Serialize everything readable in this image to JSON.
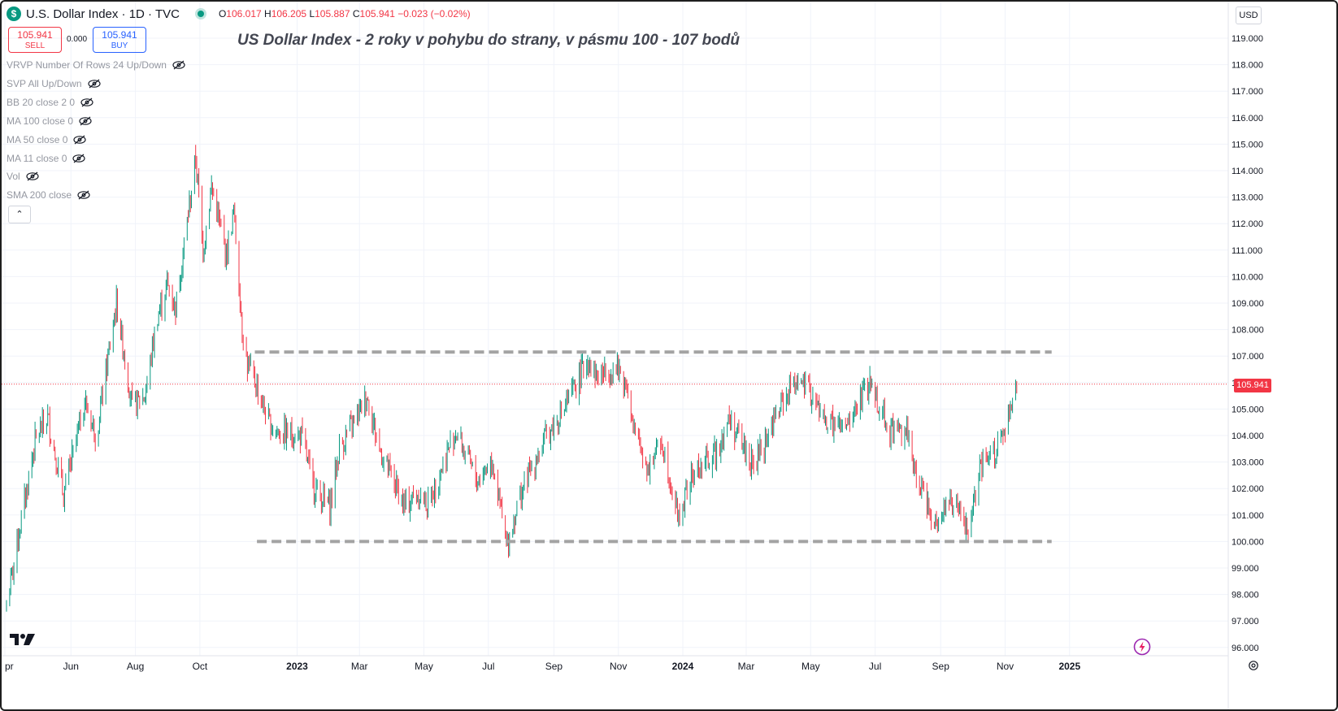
{
  "header": {
    "symbol_title": "U.S. Dollar Index · 1D · TVC",
    "logo_letter": "$",
    "open_label": "O",
    "open": "106.017",
    "high_label": "H",
    "high": "106.205",
    "low_label": "L",
    "low": "105.887",
    "close_label": "C",
    "close": "105.941",
    "change": "−0.023 (−0.02%)"
  },
  "trade": {
    "sell_price": "105.941",
    "sell_label": "SELL",
    "spread": "0.000",
    "buy_price": "105.941",
    "buy_label": "BUY"
  },
  "annotation": "US Dollar Index - 2 roky v pohybu do strany, v pásmu 100 - 107 bodů",
  "indicators": [
    "VRVP Number Of Rows 24 Up/Down",
    "SVP All Up/Down",
    "BB 20 close 2 0",
    "MA 100 close 0",
    "MA 50 close 0",
    "MA 11 close 0",
    "Vol",
    "SMA 200 close"
  ],
  "collapse_symbol": "⌃",
  "currency": "USD",
  "last_price_tag": "105.941",
  "colors": {
    "up": "#089981",
    "down": "#f23645",
    "level_line": "#a3a3a3",
    "grid": "#f0f3fa"
  },
  "chart_data": {
    "type": "candlestick",
    "interval": "1D",
    "x_tick_labels": [
      "pr",
      "Jun",
      "Aug",
      "Oct",
      "2023",
      "Mar",
      "May",
      "Jul",
      "Sep",
      "Nov",
      "2024",
      "Mar",
      "May",
      "Jul",
      "Sep",
      "Nov",
      "2025"
    ],
    "y_tick_labels": [
      "119.000",
      "118.000",
      "117.000",
      "116.000",
      "115.000",
      "114.000",
      "113.000",
      "112.000",
      "111.000",
      "110.000",
      "109.000",
      "108.000",
      "107.000",
      "106.000",
      "105.000",
      "104.000",
      "103.000",
      "102.000",
      "101.000",
      "100.000",
      "99.000",
      "98.000",
      "97.000",
      "96.000"
    ],
    "ylim": [
      96,
      119
    ],
    "grid": true,
    "last_price": 105.941,
    "horizontal_levels": [
      {
        "value": 107.15,
        "style": "dashed",
        "from": "2022-11-22",
        "to": "2024-12-15"
      },
      {
        "value": 100.0,
        "style": "dashed",
        "from": "2022-11-24",
        "to": "2024-12-15"
      }
    ],
    "path_points": [
      [
        "2022-04-01",
        97.6
      ],
      [
        "2022-04-28",
        103.8
      ],
      [
        "2022-05-10",
        104.7
      ],
      [
        "2022-05-25",
        101.7
      ],
      [
        "2022-06-14",
        105.3
      ],
      [
        "2022-06-25",
        104.0
      ],
      [
        "2022-07-14",
        109.0
      ],
      [
        "2022-07-29",
        105.1
      ],
      [
        "2022-08-10",
        105.5
      ],
      [
        "2022-08-22",
        108.5
      ],
      [
        "2022-08-31",
        109.7
      ],
      [
        "2022-09-08",
        108.8
      ],
      [
        "2022-09-27",
        114.5
      ],
      [
        "2022-10-04",
        111.0
      ],
      [
        "2022-10-12",
        113.4
      ],
      [
        "2022-10-26",
        110.8
      ],
      [
        "2022-11-02",
        112.5
      ],
      [
        "2022-11-10",
        108.1
      ],
      [
        "2022-11-15",
        106.6
      ],
      [
        "2022-11-24",
        105.9
      ],
      [
        "2022-12-05",
        104.5
      ],
      [
        "2022-12-15",
        104.1
      ],
      [
        "2023-01-05",
        104.0
      ],
      [
        "2023-01-16",
        102.1
      ],
      [
        "2023-02-01",
        101.3
      ],
      [
        "2023-02-10",
        103.5
      ],
      [
        "2023-03-08",
        105.5
      ],
      [
        "2023-03-20",
        103.5
      ],
      [
        "2023-04-13",
        101.3
      ],
      [
        "2023-04-25",
        101.8
      ],
      [
        "2023-05-05",
        101.4
      ],
      [
        "2023-05-31",
        104.2
      ],
      [
        "2023-06-20",
        102.3
      ],
      [
        "2023-07-05",
        103.1
      ],
      [
        "2023-07-18",
        99.8
      ],
      [
        "2023-08-01",
        101.9
      ],
      [
        "2023-08-25",
        104.0
      ],
      [
        "2023-09-15",
        105.3
      ],
      [
        "2023-10-03",
        106.9
      ],
      [
        "2023-10-12",
        106.2
      ],
      [
        "2023-10-30",
        106.6
      ],
      [
        "2023-11-10",
        105.8
      ],
      [
        "2023-11-15",
        104.2
      ],
      [
        "2023-11-29",
        102.8
      ],
      [
        "2023-12-12",
        103.8
      ],
      [
        "2023-12-28",
        100.9
      ],
      [
        "2024-01-10",
        102.5
      ],
      [
        "2024-01-31",
        103.3
      ],
      [
        "2024-02-14",
        104.6
      ],
      [
        "2024-03-08",
        102.8
      ],
      [
        "2024-03-27",
        104.5
      ],
      [
        "2024-04-16",
        106.2
      ],
      [
        "2024-05-02",
        105.5
      ],
      [
        "2024-05-15",
        104.5
      ],
      [
        "2024-06-03",
        104.2
      ],
      [
        "2024-06-26",
        106.0
      ],
      [
        "2024-07-15",
        104.2
      ],
      [
        "2024-07-31",
        104.3
      ],
      [
        "2024-08-05",
        102.8
      ],
      [
        "2024-08-27",
        100.8
      ],
      [
        "2024-09-10",
        101.6
      ],
      [
        "2024-09-27",
        100.4
      ],
      [
        "2024-10-08",
        102.6
      ],
      [
        "2024-10-31",
        104.0
      ],
      [
        "2024-11-06",
        104.8
      ],
      [
        "2024-11-12",
        105.9
      ]
    ]
  }
}
